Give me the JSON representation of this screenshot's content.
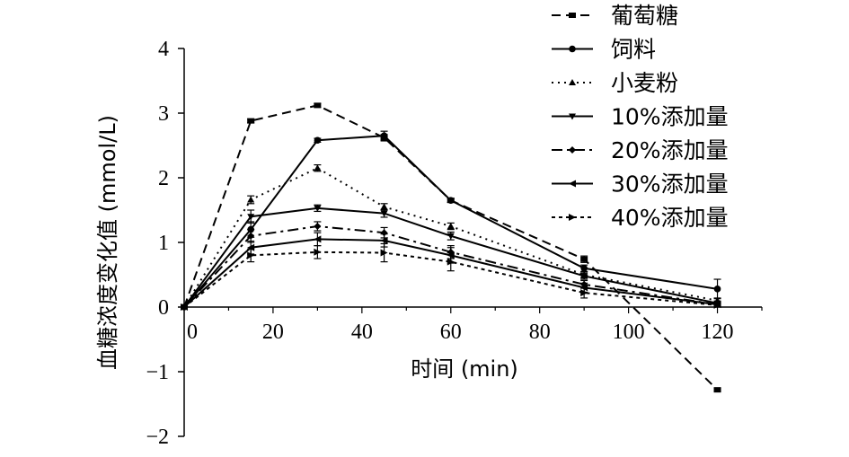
{
  "chart_data": {
    "type": "line",
    "xlabel": "时间 (min)",
    "ylabel": "血糖浓度变化值 (mmol/L)",
    "xlim": [
      0,
      130
    ],
    "ylim": [
      -2,
      4
    ],
    "xticks": [
      "0",
      "20",
      "40",
      "60",
      "80",
      "100",
      "120"
    ],
    "yticks": [
      "−2",
      "−1",
      "0",
      "1",
      "2",
      "3",
      "4"
    ],
    "x": [
      0,
      15,
      30,
      45,
      60,
      90,
      120
    ],
    "legend_position": "top-right",
    "series": [
      {
        "name": "葡萄糖",
        "style": "dash-square",
        "values": [
          0,
          2.88,
          3.12,
          2.62,
          1.65,
          0.74,
          -1.28
        ],
        "errors": [
          0,
          0.03,
          0.03,
          0.05,
          0.03,
          0.05,
          0.02
        ]
      },
      {
        "name": "饲料",
        "style": "solid-circle",
        "values": [
          0,
          1.2,
          2.58,
          2.65,
          1.65,
          0.6,
          0.28
        ],
        "errors": [
          0,
          0.12,
          0.03,
          0.07,
          0.03,
          0.05,
          0.15
        ]
      },
      {
        "name": "小麦粉",
        "style": "dot-triangle",
        "values": [
          0,
          1.66,
          2.15,
          1.55,
          1.25,
          0.5,
          0.1
        ],
        "errors": [
          0,
          0.06,
          0.05,
          0.05,
          0.05,
          0.05,
          0.04
        ]
      },
      {
        "name": "10%添加量",
        "style": "solid-down-triangle",
        "values": [
          0,
          1.4,
          1.53,
          1.45,
          1.1,
          0.48,
          0.06
        ],
        "errors": [
          0,
          0.1,
          0.05,
          0.06,
          0.06,
          0.05,
          0.03
        ]
      },
      {
        "name": "20%添加量",
        "style": "dashdot-diamond",
        "values": [
          0,
          1.1,
          1.25,
          1.15,
          0.85,
          0.35,
          0.04
        ],
        "errors": [
          0,
          0.1,
          0.07,
          0.08,
          0.1,
          0.06,
          0.03
        ]
      },
      {
        "name": "30%添加量",
        "style": "solid-left-triangle",
        "values": [
          0,
          0.92,
          1.05,
          1.03,
          0.8,
          0.3,
          0.04
        ],
        "errors": [
          0,
          0.1,
          0.1,
          0.1,
          0.12,
          0.07,
          0.03
        ]
      },
      {
        "name": "40%添加量",
        "style": "dash-right-triangle",
        "values": [
          0,
          0.8,
          0.85,
          0.84,
          0.7,
          0.22,
          0.03
        ],
        "errors": [
          0,
          0.1,
          0.1,
          0.14,
          0.14,
          0.08,
          0.03
        ]
      }
    ]
  }
}
